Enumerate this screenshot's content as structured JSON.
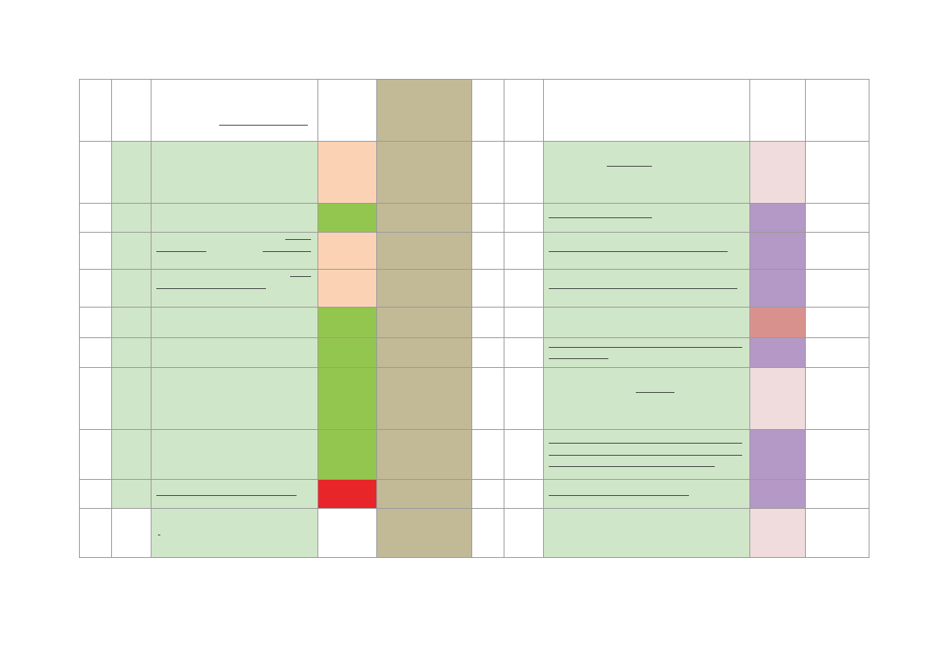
{
  "colors": {
    "white": "#ffffff",
    "light_green": "#d0e6c8",
    "peach": "#fbd3b4",
    "bright_green": "#93c64f",
    "red": "#e82528",
    "khaki": "#c2ba97",
    "lavender": "#b498c6",
    "pale_pink": "#f0dcdc",
    "rose": "#d9918e"
  },
  "column_fills": {
    "0": "white",
    "1": "light_green",
    "2": "light_green",
    "4": "khaki",
    "5": "white",
    "6": "white",
    "7": "light_green",
    "9": "white"
  },
  "rows": [
    {
      "fills": [
        "white",
        "white",
        "white",
        "white",
        "khaki",
        "white",
        "white",
        "white",
        "white",
        "white"
      ]
    },
    {
      "fills": [
        null,
        null,
        null,
        "peach",
        null,
        null,
        null,
        null,
        "pale_pink",
        null
      ]
    },
    {
      "fills": [
        null,
        null,
        null,
        "bright_green",
        null,
        null,
        null,
        null,
        "lavender",
        null
      ]
    },
    {
      "fills": [
        null,
        null,
        null,
        "peach",
        null,
        null,
        null,
        null,
        "lavender",
        null
      ]
    },
    {
      "fills": [
        null,
        null,
        null,
        "peach",
        null,
        null,
        null,
        null,
        "lavender",
        null
      ]
    },
    {
      "fills": [
        null,
        null,
        null,
        "bright_green",
        null,
        null,
        null,
        null,
        "rose",
        null
      ]
    },
    {
      "fills": [
        null,
        null,
        null,
        "bright_green",
        null,
        null,
        null,
        null,
        "lavender",
        null
      ]
    },
    {
      "fills": [
        null,
        null,
        null,
        "bright_green",
        null,
        null,
        null,
        null,
        "pale_pink",
        null
      ]
    },
    {
      "fills": [
        null,
        null,
        null,
        "bright_green",
        null,
        null,
        null,
        null,
        "lavender",
        null
      ]
    },
    {
      "fills": [
        null,
        null,
        null,
        "red",
        null,
        null,
        null,
        null,
        "lavender",
        null
      ]
    },
    {
      "fills": [
        null,
        "white",
        null,
        "white",
        null,
        null,
        null,
        null,
        "pale_pink",
        null
      ]
    }
  ]
}
